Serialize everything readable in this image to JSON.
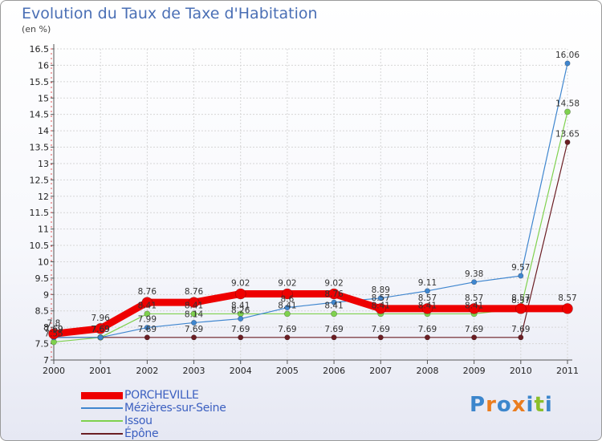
{
  "chart_data": {
    "type": "line",
    "title": "Evolution du Taux de Taxe d'Habitation",
    "subtitle": "(en %)",
    "xlabel": "",
    "ylabel": "(en %)",
    "x": [
      "2000",
      "2001",
      "2002",
      "2003",
      "2004",
      "2005",
      "2006",
      "2007",
      "2008",
      "2009",
      "2010",
      "2011"
    ],
    "ylim": [
      7,
      16.5
    ],
    "yticks": [
      7,
      7.5,
      8,
      8.5,
      9,
      9.5,
      10,
      10.5,
      11,
      11.5,
      12,
      12.5,
      13,
      13.5,
      14,
      14.5,
      15,
      15.5,
      16,
      16.5
    ],
    "yticklabels": [
      "7",
      "7.5",
      "8",
      "8.5",
      "9",
      "9.5",
      "10",
      "10.5",
      "11",
      "11.5",
      "12",
      "12.5",
      "13",
      "13.5",
      "14",
      "14.5",
      "15",
      "15.5",
      "16",
      "16.5"
    ],
    "grid": true,
    "legend_position": "bottom-left",
    "series": [
      {
        "name": "Épône",
        "color": "#6b1e24",
        "width": 1.2,
        "dot": 3.2,
        "values": [
          7.69,
          7.69,
          7.69,
          7.69,
          7.69,
          7.69,
          7.69,
          7.69,
          7.69,
          7.69,
          7.69,
          13.65
        ],
        "labels": [
          "7.69",
          "7.69",
          "7.69",
          "7.69",
          "7.69",
          "7.69",
          "7.69",
          "7.69",
          "7.69",
          "7.69",
          "7.69",
          "13.65"
        ]
      },
      {
        "name": "Issou",
        "color": "#7fd14e",
        "width": 1.2,
        "dot": 3.6,
        "values": [
          7.55,
          7.69,
          8.41,
          8.41,
          8.41,
          8.41,
          8.41,
          8.41,
          8.41,
          8.41,
          8.57,
          14.58
        ],
        "labels": [
          "7.55",
          "7.69",
          "8.41",
          "8.41",
          "8.41",
          "8.41",
          "8.41",
          "8.41",
          "8.41",
          "8.41",
          "8.57",
          "14.58"
        ]
      },
      {
        "name": "Mézières-sur-Seine",
        "color": "#3f86cf",
        "width": 1.2,
        "dot": 3.2,
        "values": [
          7.69,
          7.69,
          7.99,
          8.14,
          8.26,
          8.6,
          8.76,
          8.89,
          9.11,
          9.38,
          9.57,
          16.06
        ],
        "labels": [
          "7.69",
          "7.69",
          "7.99",
          "8.14",
          "8.26",
          "8.6",
          "8.76",
          "8.89",
          "9.11",
          "9.38",
          "9.57",
          "16.06"
        ]
      },
      {
        "name": "PORCHEVILLE",
        "color": "#ee0000",
        "width": 9,
        "dot": 6.5,
        "values": [
          7.8,
          7.96,
          8.76,
          8.76,
          9.02,
          9.02,
          9.02,
          8.57,
          8.57,
          8.57,
          8.57,
          8.57
        ],
        "labels": [
          "7.8",
          "7.96",
          "8.76",
          "8.76",
          "9.02",
          "9.02",
          "9.02",
          "8.57",
          "8.57",
          "8.57",
          "8.57",
          "8.57"
        ]
      }
    ]
  },
  "legend": {
    "items": [
      {
        "label": "PORCHEVILLE",
        "color": "#ee0000",
        "thickness": 9
      },
      {
        "label": "Mézières-sur-Seine",
        "color": "#3f86cf",
        "thickness": 2
      },
      {
        "label": "Issou",
        "color": "#7fd14e",
        "thickness": 2
      },
      {
        "label": "Épône",
        "color": "#6b1e24",
        "thickness": 2
      }
    ]
  },
  "logo": {
    "text": "Proxiti",
    "letters": [
      "P",
      "r",
      "o",
      "x",
      "i",
      "t",
      "i"
    ],
    "colors": [
      "#3c86cc",
      "#ea7d1f",
      "#3c86cc",
      "#ea7d1f",
      "#3c86cc",
      "#8bbf2a",
      "#3c86cc"
    ]
  }
}
